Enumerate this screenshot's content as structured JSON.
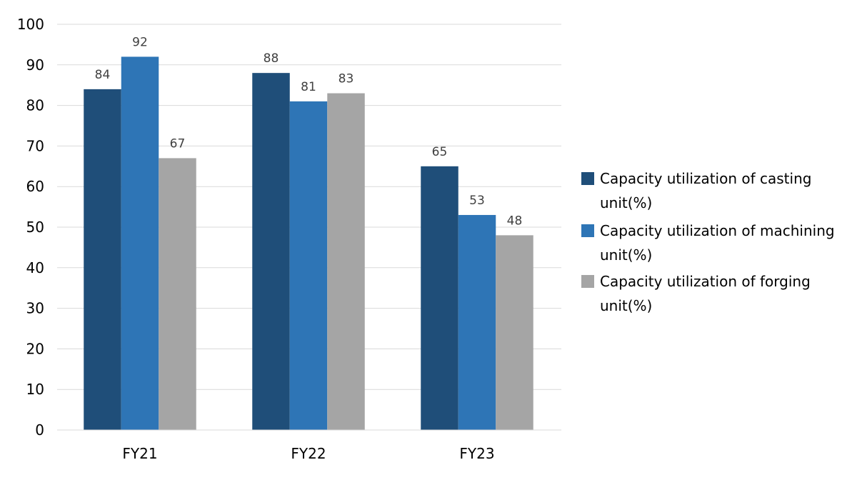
{
  "chart_data": {
    "type": "bar",
    "title": "",
    "xlabel": "",
    "ylabel": "",
    "categories": [
      "FY21",
      "FY22",
      "FY23"
    ],
    "ylim": [
      0,
      100
    ],
    "yticks": [
      0,
      10,
      20,
      30,
      40,
      50,
      60,
      70,
      80,
      90,
      100
    ],
    "grid": true,
    "legend_position": "right",
    "series": [
      {
        "name": "Capacity utilization of casting unit(%)",
        "legend_lines": [
          "Capacity utilization of casting",
          "unit(%)"
        ],
        "color": "#1f4e79",
        "values": [
          84,
          88,
          65
        ]
      },
      {
        "name": "Capacity utilization of machining unit(%)",
        "legend_lines": [
          "Capacity utilization of machining",
          "unit(%)"
        ],
        "color": "#2e75b6",
        "values": [
          92,
          81,
          53
        ]
      },
      {
        "name": "Capacity utilization of forging unit(%)",
        "legend_lines": [
          "Capacity utilization of forging",
          "unit(%)"
        ],
        "color": "#a5a5a5",
        "values": [
          67,
          83,
          48
        ]
      }
    ]
  }
}
